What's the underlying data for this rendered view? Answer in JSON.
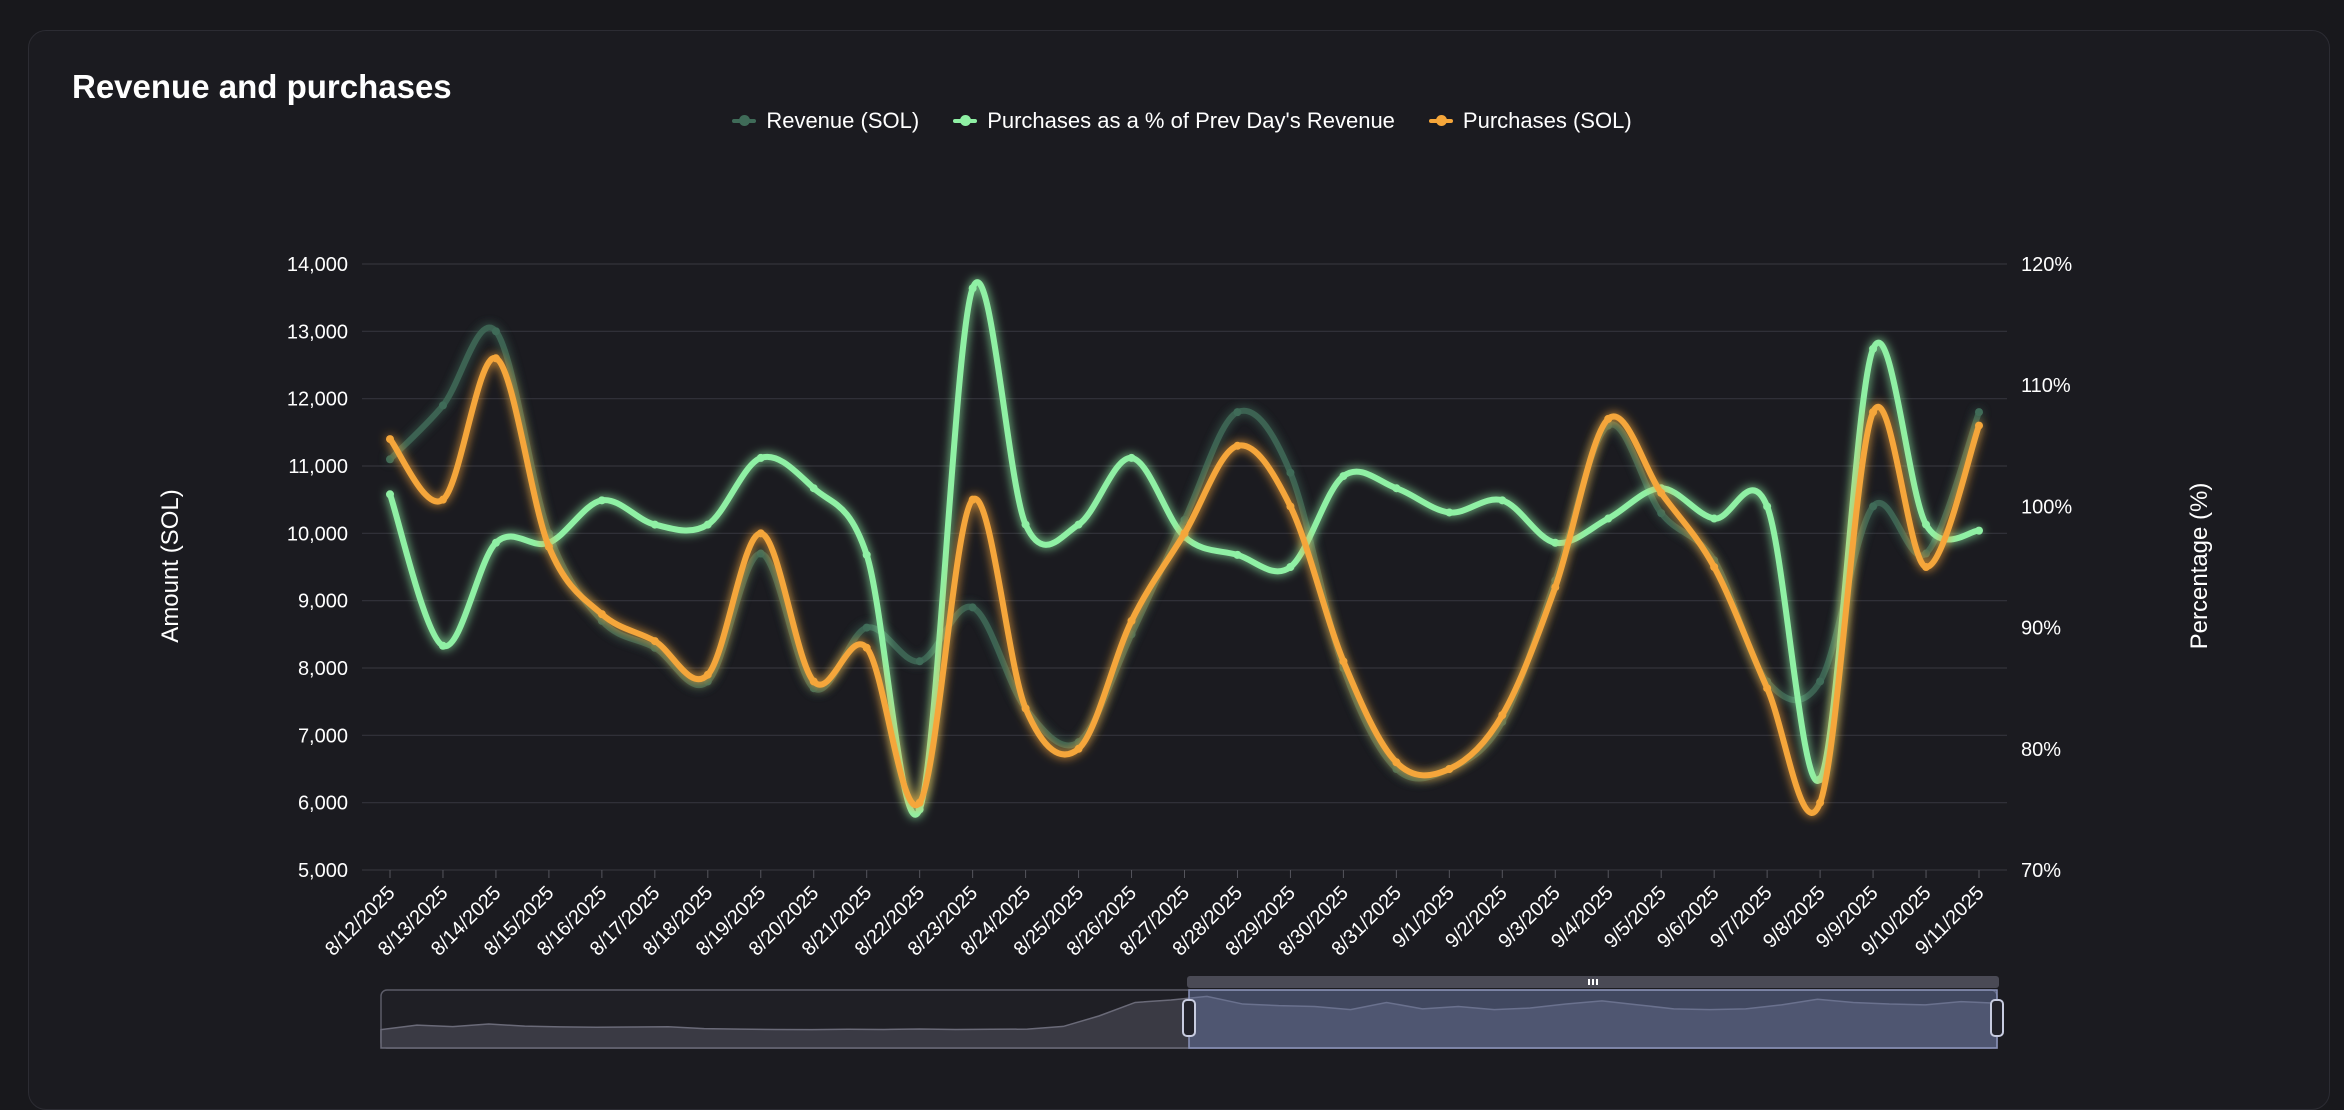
{
  "title": "Revenue and purchases",
  "legend": [
    {
      "label": "Revenue (SOL)",
      "color": "#3f6b58"
    },
    {
      "label": "Purchases as a % of Prev Day's Revenue",
      "color": "#8ff0a4"
    },
    {
      "label": "Purchases (SOL)",
      "color": "#f5a63a"
    }
  ],
  "chart_data": {
    "type": "line",
    "x": [
      "8/12/2025",
      "8/13/2025",
      "8/14/2025",
      "8/15/2025",
      "8/16/2025",
      "8/17/2025",
      "8/18/2025",
      "8/19/2025",
      "8/20/2025",
      "8/21/2025",
      "8/22/2025",
      "8/23/2025",
      "8/24/2025",
      "8/25/2025",
      "8/26/2025",
      "8/27/2025",
      "8/28/2025",
      "8/29/2025",
      "8/30/2025",
      "8/31/2025",
      "9/1/2025",
      "9/2/2025",
      "9/3/2025",
      "9/4/2025",
      "9/5/2025",
      "9/6/2025",
      "9/7/2025",
      "9/8/2025",
      "9/9/2025",
      "9/10/2025",
      "9/11/2025"
    ],
    "ylabel": "Amount (SOL)",
    "y2label": "Percentage (%)",
    "ylim": [
      5000,
      14000
    ],
    "y2lim": [
      70,
      120
    ],
    "yticks": [
      "5,000",
      "6,000",
      "7,000",
      "8,000",
      "9,000",
      "10,000",
      "11,000",
      "12,000",
      "13,000",
      "14,000"
    ],
    "y2ticks": [
      "70%",
      "80%",
      "90%",
      "100%",
      "110%",
      "120%"
    ],
    "series": [
      {
        "name": "Revenue (SOL)",
        "axis": "left",
        "color": "#3f6b58",
        "values": [
          11100,
          11900,
          13000,
          10000,
          8700,
          8300,
          7800,
          9700,
          7700,
          8600,
          8100,
          8900,
          7400,
          6900,
          8500,
          10200,
          11800,
          10900,
          8000,
          6500,
          6500,
          7200,
          9300,
          11600,
          10300,
          9600,
          7800,
          7800,
          10400,
          9700,
          11800
        ]
      },
      {
        "name": "Purchases as a % of Prev Day's Revenue",
        "axis": "right",
        "color": "#8ff0a4",
        "values": [
          101,
          88.5,
          97,
          97,
          100.5,
          98.5,
          98.5,
          104,
          101.5,
          96,
          75,
          118,
          98.5,
          98.5,
          104,
          97.5,
          96,
          95,
          102.5,
          101.5,
          99.5,
          100.5,
          97,
          99,
          101.5,
          99,
          100,
          77.5,
          113,
          98.5,
          98
        ]
      },
      {
        "name": "Purchases (SOL)",
        "axis": "left",
        "color": "#f5a63a",
        "values": [
          11400,
          10500,
          12600,
          9800,
          8800,
          8400,
          7900,
          10000,
          7800,
          8300,
          6000,
          10500,
          7400,
          6800,
          8700,
          10000,
          11300,
          10400,
          8100,
          6600,
          6500,
          7300,
          9200,
          11700,
          10600,
          9500,
          7700,
          6000,
          11800,
          9500,
          11600
        ]
      }
    ],
    "grid": true,
    "legend_position": "top-center"
  },
  "zoom_slider": {
    "start": 0.5,
    "end": 1.0,
    "handle_icon": "grip-icon",
    "preview_values": [
      9000,
      11800,
      10900,
      12500,
      11200,
      10700,
      10500,
      10600,
      10800,
      9600,
      9300,
      9100,
      9000,
      9200,
      9100,
      9400,
      9100,
      9200,
      9300,
      11000,
      17600,
      26000,
      27500,
      29800,
      25000,
      24000,
      23500,
      21500,
      26000,
      22000,
      23500,
      21500,
      22500,
      25000,
      27000,
      24500,
      22000,
      21500,
      22000,
      24500,
      28000,
      26000,
      25000,
      24500,
      26500,
      25500
    ]
  }
}
